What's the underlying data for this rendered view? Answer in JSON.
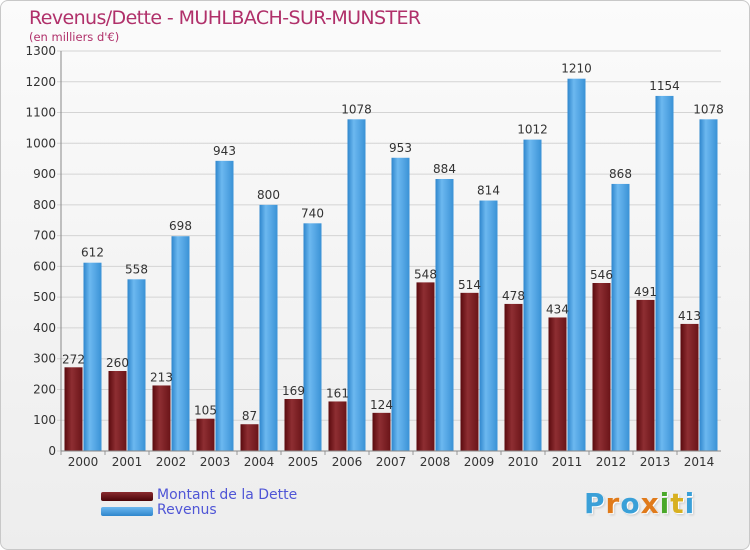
{
  "header": {
    "title": "Revenus/Dette - MUHLBACH-SUR-MUNSTER",
    "subtitle": "(en milliers d'€)"
  },
  "legend": {
    "debt_label": "Montant de la Dette",
    "revenue_label": "Revenus"
  },
  "brand": {
    "letters": [
      "P",
      "r",
      "o",
      "x",
      "i",
      "t",
      "i"
    ]
  },
  "colors": {
    "title": "#b0306a",
    "legend_text": "#4f55d6",
    "debt_top": "#9a3a3e",
    "debt_bottom": "#5a0a0e",
    "revenue_light": "#6cb8f0",
    "revenue_dark": "#2f86cc",
    "brand": [
      "#3aa0d8",
      "#e07a1a",
      "#3aa0d8",
      "#e07a1a",
      "#4aa82a",
      "#d8b020",
      "#3aa0d8"
    ]
  },
  "chart_data": {
    "type": "bar",
    "title": "Revenus/Dette - MUHLBACH-SUR-MUNSTER",
    "subtitle": "(en milliers d'€)",
    "xlabel": "",
    "ylabel": "",
    "ylim": [
      0,
      1300
    ],
    "ytick_step": 100,
    "grid": true,
    "legend_position": "bottom-left",
    "categories": [
      "2000",
      "2001",
      "2002",
      "2003",
      "2004",
      "2005",
      "2006",
      "2007",
      "2008",
      "2009",
      "2010",
      "2011",
      "2012",
      "2013",
      "2014"
    ],
    "series": [
      {
        "name": "Montant de la Dette",
        "values": [
          272,
          260,
          213,
          105,
          87,
          169,
          161,
          124,
          548,
          514,
          478,
          434,
          546,
          491,
          413
        ],
        "labels": [
          "272",
          "260",
          "213",
          "105",
          "87",
          "169",
          "161",
          "124",
          "548",
          "514",
          "478",
          "434",
          "546",
          "491",
          "413"
        ]
      },
      {
        "name": "Revenus",
        "values": [
          612,
          558,
          698,
          943,
          800,
          740,
          1078,
          953,
          884,
          814,
          1012,
          1210,
          868,
          1154,
          1078
        ],
        "labels": [
          "612",
          "558",
          "698",
          "943",
          "800",
          "740",
          "1078",
          "953",
          "884",
          "814",
          "1012",
          "1210",
          "868",
          "1154",
          "1078"
        ]
      }
    ]
  }
}
